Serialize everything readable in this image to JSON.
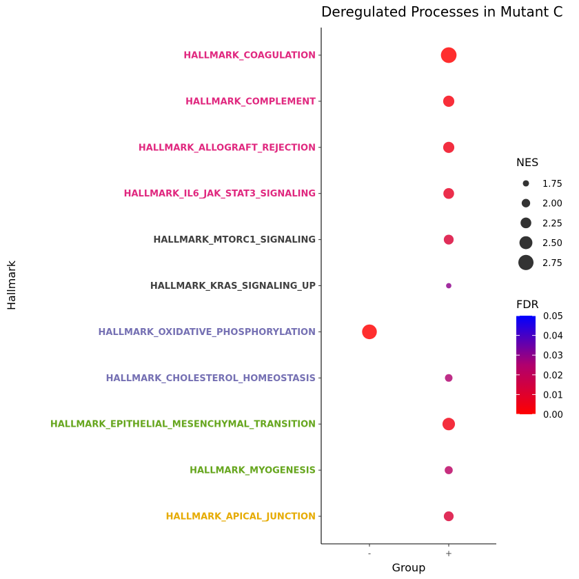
{
  "chart_data": {
    "type": "scatter",
    "title": "Deregulated Processes in Mutant C",
    "xlabel": "Group",
    "ylabel": "Hallmark",
    "x_categories": [
      "-",
      "+"
    ],
    "y_categories": [
      {
        "label": "HALLMARK_COAGULATION",
        "color": "#e0287f"
      },
      {
        "label": "HALLMARK_COMPLEMENT",
        "color": "#e0287f"
      },
      {
        "label": "HALLMARK_ALLOGRAFT_REJECTION",
        "color": "#e0287f"
      },
      {
        "label": "HALLMARK_IL6_JAK_STAT3_SIGNALING",
        "color": "#e0287f"
      },
      {
        "label": "HALLMARK_MTORC1_SIGNALING",
        "color": "#404040"
      },
      {
        "label": "HALLMARK_KRAS_SIGNALING_UP",
        "color": "#404040"
      },
      {
        "label": "HALLMARK_OXIDATIVE_PHOSPHORYLATION",
        "color": "#7570b3"
      },
      {
        "label": "HALLMARK_CHOLESTEROL_HOMEOSTASIS",
        "color": "#7570b3"
      },
      {
        "label": "HALLMARK_EPITHELIAL_MESENCHYMAL_TRANSITION",
        "color": "#66a61e"
      },
      {
        "label": "HALLMARK_MYOGENESIS",
        "color": "#66a61e"
      },
      {
        "label": "HALLMARK_APICAL_JUNCTION",
        "color": "#e6ab02"
      }
    ],
    "points": [
      {
        "hallmark": "HALLMARK_COAGULATION",
        "group": "+",
        "nes": 2.8,
        "fdr": 0.0
      },
      {
        "hallmark": "HALLMARK_COMPLEMENT",
        "group": "+",
        "nes": 2.3,
        "fdr": 0.003
      },
      {
        "hallmark": "HALLMARK_ALLOGRAFT_REJECTION",
        "group": "+",
        "nes": 2.3,
        "fdr": 0.005
      },
      {
        "hallmark": "HALLMARK_IL6_JAK_STAT3_SIGNALING",
        "group": "+",
        "nes": 2.25,
        "fdr": 0.008
      },
      {
        "hallmark": "HALLMARK_MTORC1_SIGNALING",
        "group": "+",
        "nes": 2.15,
        "fdr": 0.012
      },
      {
        "hallmark": "HALLMARK_KRAS_SIGNALING_UP",
        "group": "+",
        "nes": 1.65,
        "fdr": 0.03
      },
      {
        "hallmark": "HALLMARK_OXIDATIVE_PHOSPHORYLATION",
        "group": "-",
        "nes": 2.7,
        "fdr": 0.0
      },
      {
        "hallmark": "HALLMARK_CHOLESTEROL_HOMEOSTASIS",
        "group": "+",
        "nes": 1.9,
        "fdr": 0.025
      },
      {
        "hallmark": "HALLMARK_EPITHELIAL_MESENCHYMAL_TRANSITION",
        "group": "+",
        "nes": 2.45,
        "fdr": 0.004
      },
      {
        "hallmark": "HALLMARK_MYOGENESIS",
        "group": "+",
        "nes": 1.95,
        "fdr": 0.022
      },
      {
        "hallmark": "HALLMARK_APICAL_JUNCTION",
        "group": "+",
        "nes": 2.15,
        "fdr": 0.012
      }
    ],
    "size_legend": {
      "title": "NES",
      "values": [
        1.75,
        2.0,
        2.25,
        2.5,
        2.75
      ],
      "labels": [
        "1.75",
        "2.00",
        "2.25",
        "2.50",
        "2.75"
      ]
    },
    "color_legend": {
      "title": "FDR",
      "range": [
        0.0,
        0.05
      ],
      "labels": [
        "0.05",
        "0.04",
        "0.03",
        "0.02",
        "0.01",
        "0.00"
      ],
      "low_color": "#ff0000",
      "high_color": "#0000ff"
    },
    "grid": false,
    "legend_position": "right"
  }
}
